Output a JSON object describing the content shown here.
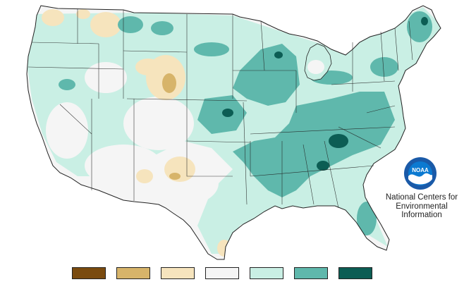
{
  "map": {
    "outline_color": "#222222",
    "palette": {
      "much_drier": "#7a4b0f",
      "drier": "#d7b46a",
      "slightly_drier": "#f6e4bd",
      "near_normal": "#f5f5f5",
      "slightly_wetter": "#c9efe4",
      "wetter": "#5fb8ac",
      "much_wetter": "#0c5d54"
    }
  },
  "branding": {
    "logo_text": "NOAA",
    "logo_colors": {
      "ring": "#1a5aa8",
      "wave": "#ffffff",
      "sky": "#0b7ad1"
    },
    "org_line1": "National Centers for",
    "org_line2": "Environmental",
    "org_line3": "Information"
  },
  "legend": {
    "items": [
      {
        "color": "#7a4b0f"
      },
      {
        "color": "#d7b46a"
      },
      {
        "color": "#f6e4bd"
      },
      {
        "color": "#f5f5f5"
      },
      {
        "color": "#c9efe4"
      },
      {
        "color": "#5fb8ac"
      },
      {
        "color": "#0c5d54"
      }
    ]
  }
}
